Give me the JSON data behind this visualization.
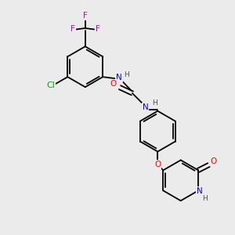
{
  "bg_color": "#ebebeb",
  "atom_colors": {
    "C": "#000000",
    "N": "#0000ff",
    "O": "#ff0000",
    "F": "#cc00cc",
    "Cl": "#00aa00",
    "H": "#505050"
  },
  "bond_color": "#000000",
  "figsize": [
    3.0,
    3.0
  ],
  "dpi": 100
}
